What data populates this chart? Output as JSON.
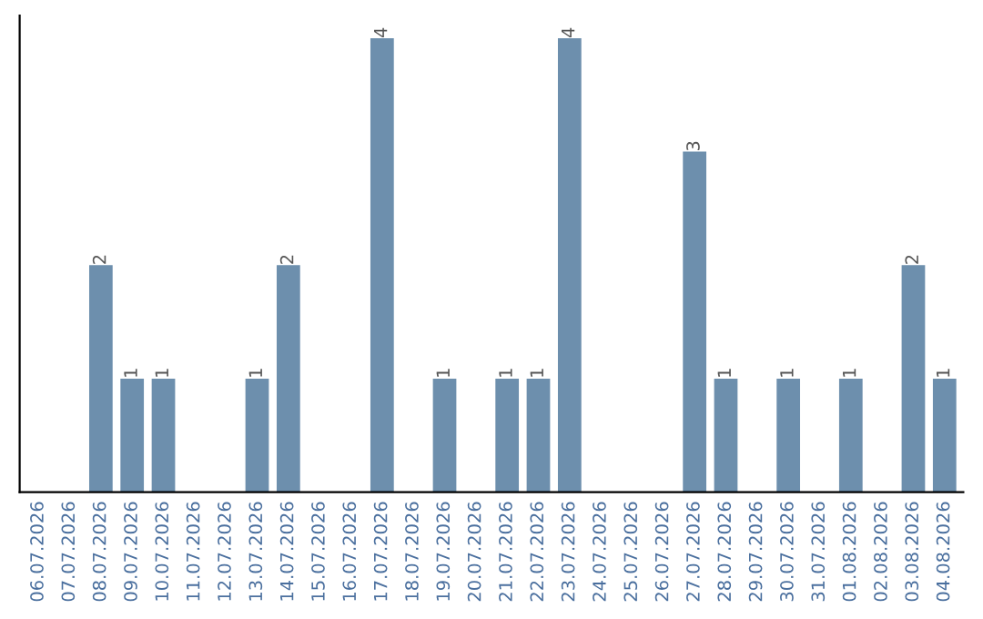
{
  "chart_data": {
    "type": "bar",
    "categories": [
      "06.07.2026",
      "07.07.2026",
      "08.07.2026",
      "09.07.2026",
      "10.07.2026",
      "11.07.2026",
      "12.07.2026",
      "13.07.2026",
      "14.07.2026",
      "15.07.2026",
      "16.07.2026",
      "17.07.2026",
      "18.07.2026",
      "19.07.2026",
      "20.07.2026",
      "21.07.2026",
      "22.07.2026",
      "23.07.2026",
      "24.07.2026",
      "25.07.2026",
      "26.07.2026",
      "27.07.2026",
      "28.07.2026",
      "29.07.2026",
      "30.07.2026",
      "31.07.2026",
      "01.08.2026",
      "02.08.2026",
      "03.08.2026",
      "04.08.2026"
    ],
    "values": [
      0,
      0,
      2,
      1,
      1,
      0,
      0,
      1,
      2,
      0,
      0,
      4,
      0,
      1,
      0,
      1,
      1,
      4,
      0,
      0,
      0,
      3,
      1,
      0,
      1,
      0,
      1,
      0,
      2,
      1
    ],
    "value_labels": [
      null,
      null,
      "2",
      "1",
      "1",
      null,
      null,
      "1",
      "2",
      null,
      null,
      "4",
      null,
      "1",
      null,
      "1",
      "1",
      "4",
      null,
      null,
      null,
      "3",
      "1",
      null,
      "1",
      null,
      "1",
      null,
      "2",
      "1"
    ],
    "color": "#6d8fad",
    "ylim": [
      0,
      4.2
    ],
    "tick_labels": "x",
    "grid": false,
    "legend": false
  }
}
